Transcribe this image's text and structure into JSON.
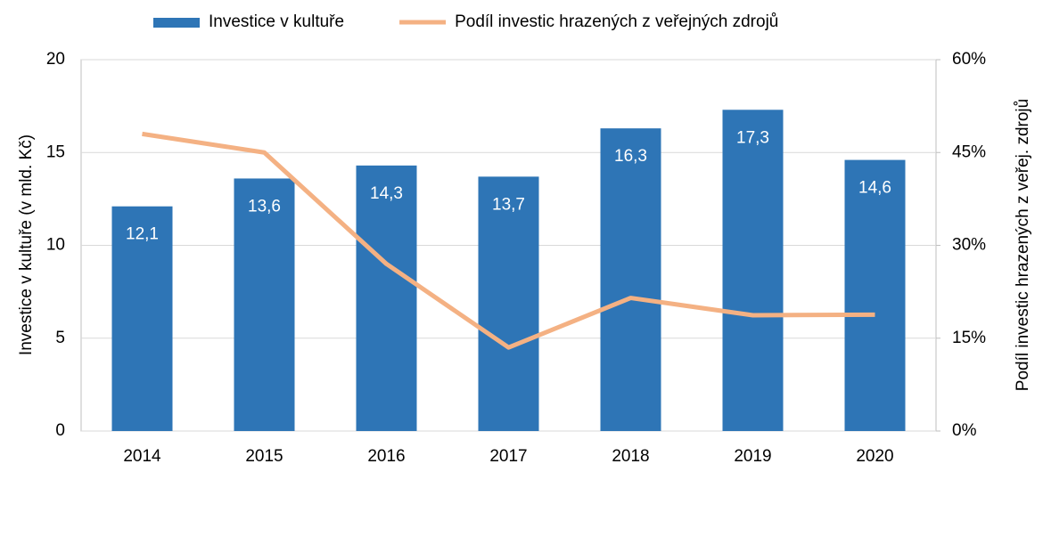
{
  "chart_data": {
    "type": "bar-line",
    "categories": [
      "2014",
      "2015",
      "2016",
      "2017",
      "2018",
      "2019",
      "2020"
    ],
    "series": [
      {
        "name": "Investice v kultuře",
        "color": "#2e75b6",
        "type": "bar",
        "values": [
          12.1,
          13.6,
          14.3,
          13.7,
          16.3,
          17.3,
          14.6
        ],
        "value_labels": [
          "12,1",
          "13,6",
          "14,3",
          "13,7",
          "16,3",
          "17,3",
          "14,6"
        ]
      },
      {
        "name": "Podíl investic hrazených z veřejných zdrojů",
        "color": "#f4b183",
        "type": "line",
        "axis": "y2",
        "values": [
          48,
          45,
          27,
          13.5,
          21.5,
          18.7,
          18.8
        ]
      }
    ],
    "y_label": "Investice v kultuře (v mld. Kč)",
    "y2_label": "Podíl investic hrazených z veřej. zdrojů",
    "ylim": [
      0,
      20
    ],
    "yticks": [
      0,
      5,
      10,
      15,
      20
    ],
    "y2lim": [
      0,
      60
    ],
    "y2ticks": [
      {
        "value": 0,
        "label": "0%"
      },
      {
        "value": 15,
        "label": "15%"
      },
      {
        "value": 30,
        "label": "30%"
      },
      {
        "value": 45,
        "label": "45%"
      },
      {
        "value": 60,
        "label": "60%"
      }
    ],
    "grid": true,
    "legend": "top"
  }
}
